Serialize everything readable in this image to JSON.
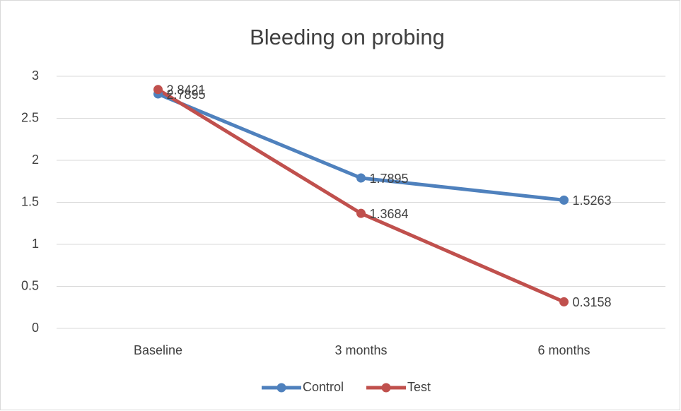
{
  "chart_data": {
    "type": "line",
    "title": "Bleeding on probing",
    "categories": [
      "Baseline",
      "3 months",
      "6 months"
    ],
    "series": [
      {
        "name": "Control",
        "color": "#4f81bd",
        "values": [
          2.7895,
          1.7895,
          1.5263
        ]
      },
      {
        "name": "Test",
        "color": "#c0504d",
        "values": [
          2.8421,
          1.3684,
          0.3158
        ]
      }
    ],
    "ylim": [
      0,
      3
    ],
    "yticks": [
      0,
      0.5,
      1,
      1.5,
      2,
      2.5,
      3
    ],
    "grid": true,
    "legend": "bottom"
  }
}
